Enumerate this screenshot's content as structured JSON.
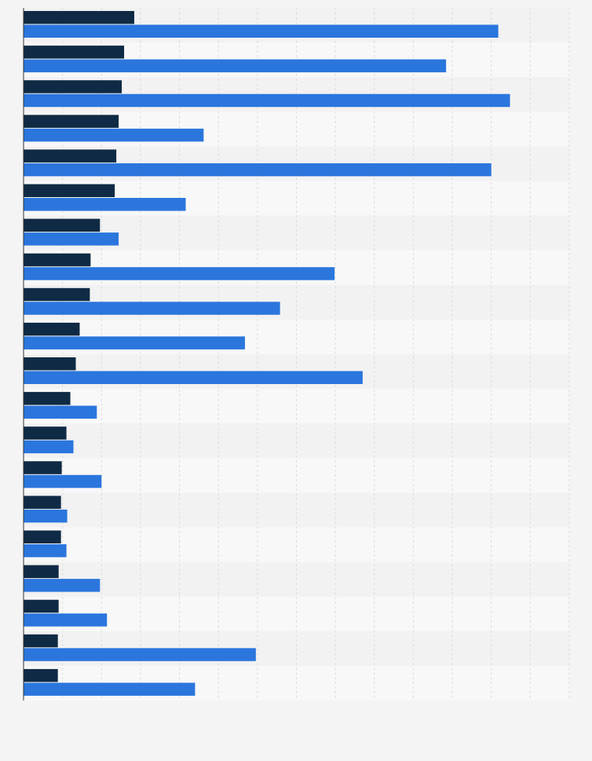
{
  "chart_data": {
    "type": "bar",
    "orientation": "horizontal",
    "title": "",
    "xlabel": "",
    "ylabel": "",
    "categories": [
      "",
      "",
      "",
      "",
      "",
      "",
      "",
      "",
      "",
      "",
      "",
      "",
      "",
      "",
      "",
      "",
      "",
      "",
      "",
      ""
    ],
    "series": [
      {
        "color": "#0f2a44",
        "values": [
          14.2,
          12.9,
          12.6,
          12.2,
          11.9,
          11.7,
          9.8,
          8.6,
          8.5,
          7.2,
          6.7,
          6.0,
          5.5,
          4.9,
          4.8,
          4.8,
          4.5,
          4.5,
          4.4,
          4.4
        ]
      },
      {
        "color": "#2a76dd",
        "values": [
          60.9,
          54.2,
          62.4,
          23.1,
          60.0,
          20.8,
          12.2,
          39.9,
          32.9,
          28.4,
          43.5,
          9.4,
          6.4,
          10.0,
          5.6,
          5.5,
          9.8,
          10.7,
          29.8,
          22.0
        ]
      }
    ],
    "xlim": [
      0,
      70
    ],
    "grid": true,
    "legend": "none"
  }
}
